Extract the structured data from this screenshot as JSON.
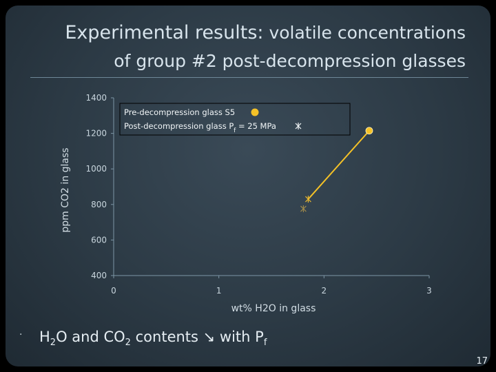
{
  "slide": {
    "title_line1_lead": "Experimental results:",
    "title_line1_rest": " volatile concentrations",
    "title_line2": "of group #2 post-decompression glasses",
    "caption": {
      "part1": "H",
      "sub1": "2",
      "part2": "O and CO",
      "sub2": "2",
      "part3": " contents ↘ with P",
      "sub3": "f"
    },
    "bullet": "·",
    "page_number": "17"
  },
  "chart_data": {
    "type": "scatter",
    "xlabel": "wt% H2O in glass",
    "ylabel": "ppm CO2 in glass",
    "xlim": [
      0,
      3
    ],
    "ylim": [
      400,
      1400
    ],
    "xticks": [
      0,
      1,
      2,
      3
    ],
    "yticks": [
      400,
      600,
      800,
      1000,
      1200,
      1400
    ],
    "grid": false,
    "series": [
      {
        "name": "Pre-decompression glass S5",
        "marker": "circle",
        "color": "#f5c227",
        "points": [
          [
            2.43,
            1215
          ]
        ]
      },
      {
        "name": "Post-decompression glass Pf = 25 MPa",
        "marker": "asterisk",
        "color": "#e8b830",
        "points": [
          [
            1.85,
            830
          ]
        ]
      }
    ],
    "connector": {
      "color": "#f5c227",
      "from": [
        2.43,
        1215
      ],
      "to": [
        1.85,
        830
      ]
    },
    "colors": {
      "axis": "#7d96a6",
      "tick_label": "#c9d6de",
      "axis_label": "#d2dde4"
    }
  }
}
